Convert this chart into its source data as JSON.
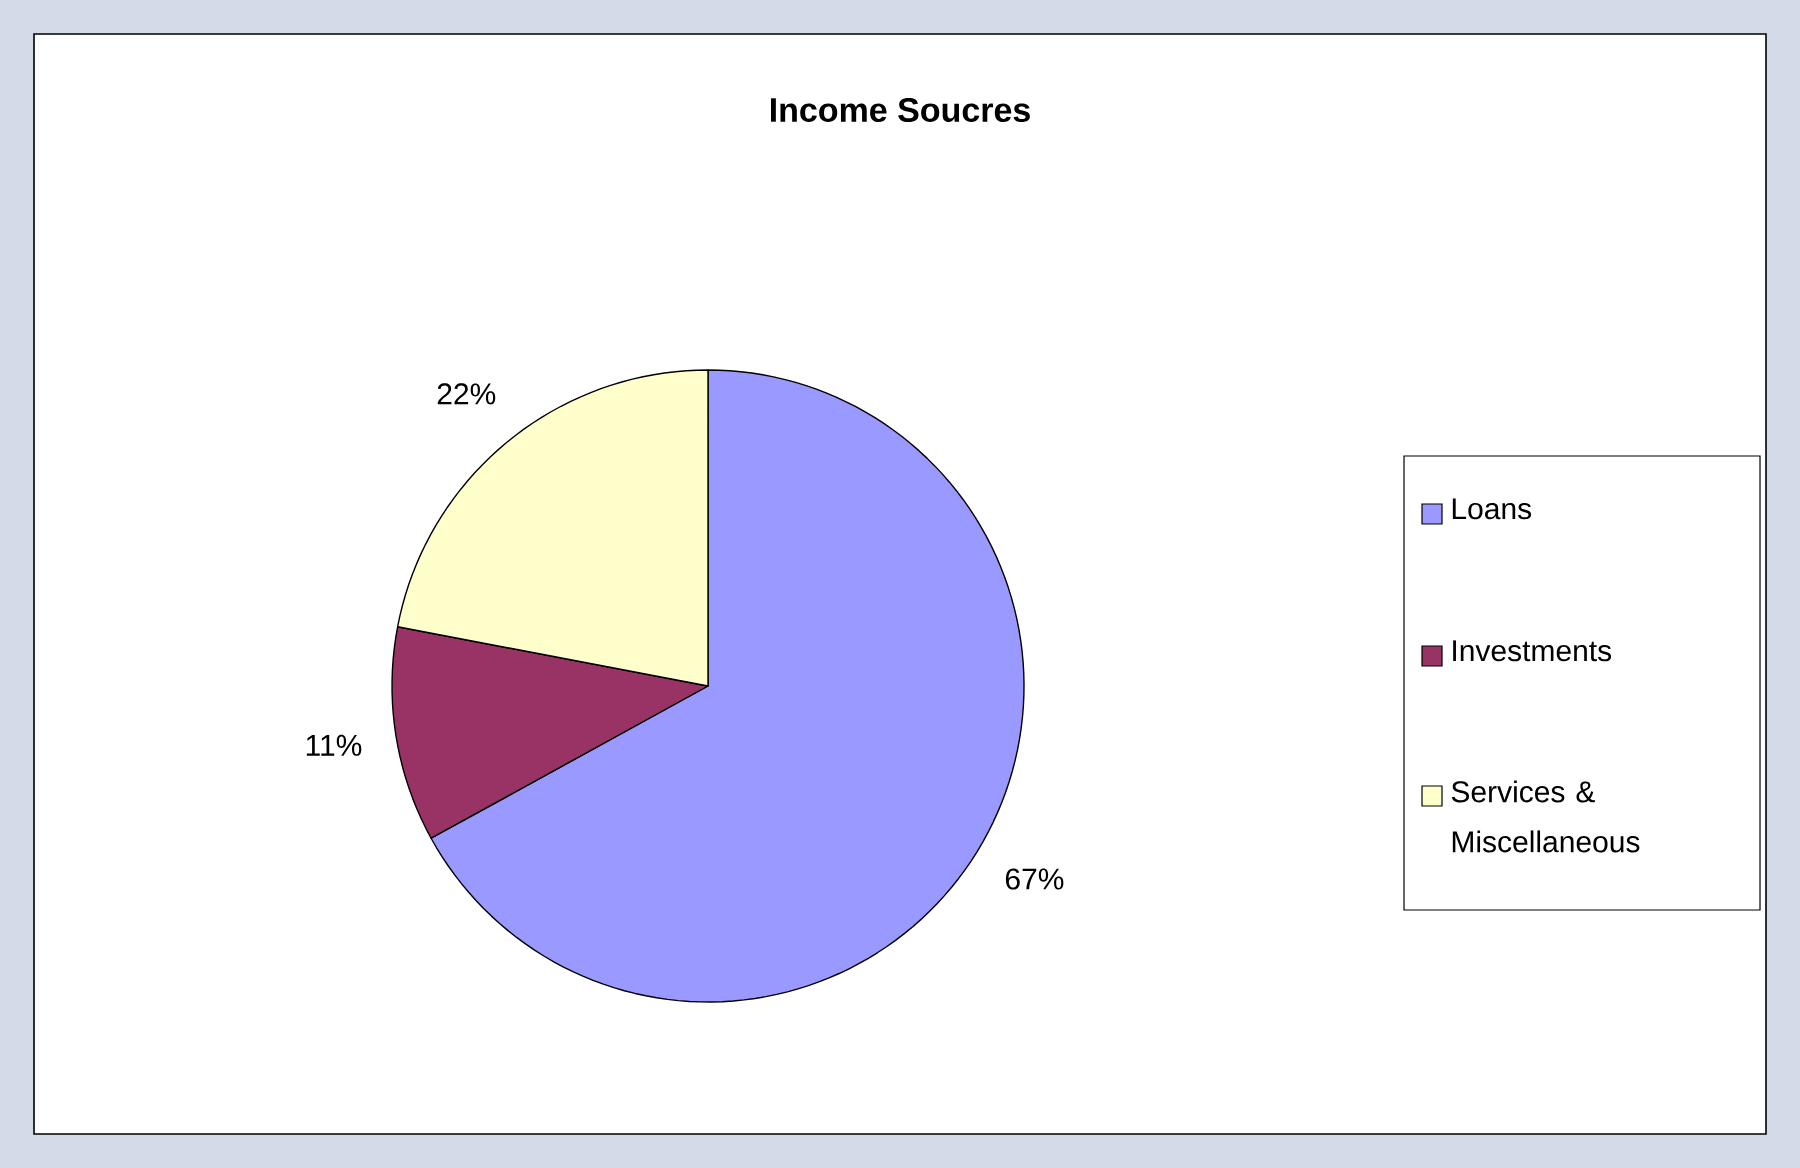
{
  "chart_data": {
    "type": "pie",
    "title": "Income Soucres",
    "categories": [
      "Loans",
      "Investments",
      "Services & Miscellaneous"
    ],
    "values": [
      67,
      11,
      22
    ],
    "colors": [
      "#9999ff",
      "#993366",
      "#ffffcc"
    ],
    "value_labels": [
      "67%",
      "11%",
      "22%"
    ],
    "legend": "right"
  }
}
